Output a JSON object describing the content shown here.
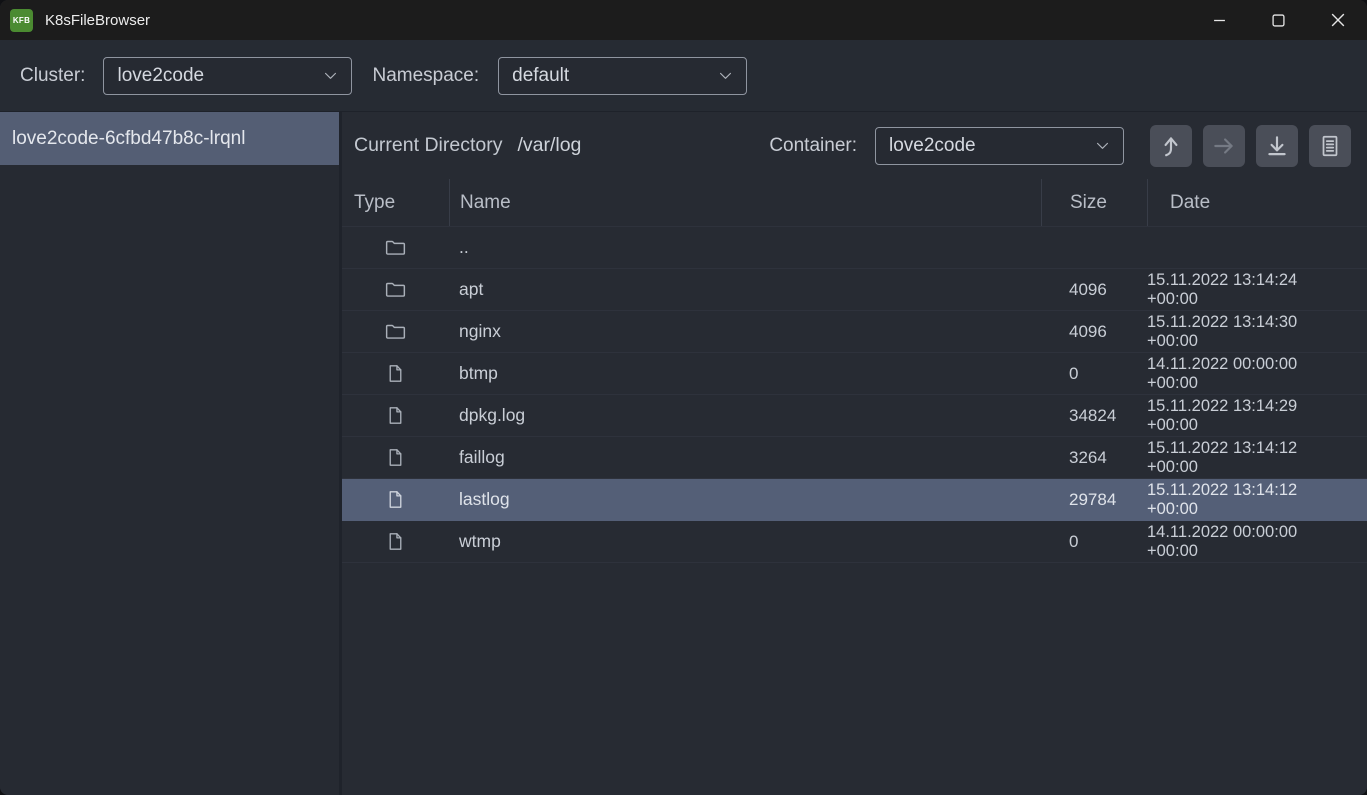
{
  "window": {
    "title": "K8sFileBrowser",
    "icon_text": "KFB",
    "controls": [
      {
        "name": "minimize",
        "icon": "minimize-icon"
      },
      {
        "name": "maximize",
        "icon": "maximize-icon"
      },
      {
        "name": "close",
        "icon": "close-icon"
      }
    ]
  },
  "toolbar": {
    "cluster_label": "Cluster:",
    "cluster_value": "love2code",
    "namespace_label": "Namespace:",
    "namespace_value": "default"
  },
  "sidebar": {
    "pods": [
      {
        "name": "love2code-6cfbd47b8c-lrqnl",
        "selected": true
      }
    ]
  },
  "main": {
    "current_directory_label": "Current Directory",
    "current_directory_path": "/var/log",
    "container_label": "Container:",
    "container_value": "love2code",
    "actions": [
      {
        "name": "navigate-up",
        "icon": "arrow-up-curved-icon",
        "enabled": true
      },
      {
        "name": "navigate-forward",
        "icon": "arrow-right-icon",
        "enabled": false
      },
      {
        "name": "download-file",
        "icon": "download-icon",
        "enabled": true
      },
      {
        "name": "view-logs",
        "icon": "log-document-icon",
        "enabled": true
      }
    ]
  },
  "file_table": {
    "columns": [
      "Type",
      "Name",
      "Size",
      "Date"
    ],
    "rows": [
      {
        "type": "folder",
        "name": "..",
        "size": "",
        "date": "",
        "selected": false
      },
      {
        "type": "folder",
        "name": "apt",
        "size": "4096",
        "date": "15.11.2022 13:14:24 +00:00",
        "selected": false
      },
      {
        "type": "folder",
        "name": "nginx",
        "size": "4096",
        "date": "15.11.2022 13:14:30 +00:00",
        "selected": false
      },
      {
        "type": "file",
        "name": "btmp",
        "size": "0",
        "date": "14.11.2022 00:00:00 +00:00",
        "selected": false
      },
      {
        "type": "file",
        "name": "dpkg.log",
        "size": "34824",
        "date": "15.11.2022 13:14:29 +00:00",
        "selected": false
      },
      {
        "type": "file",
        "name": "faillog",
        "size": "3264",
        "date": "15.11.2022 13:14:12 +00:00",
        "selected": false
      },
      {
        "type": "file",
        "name": "lastlog",
        "size": "29784",
        "date": "15.11.2022 13:14:12 +00:00",
        "selected": true
      },
      {
        "type": "file",
        "name": "wtmp",
        "size": "0",
        "date": "14.11.2022 00:00:00 +00:00",
        "selected": false
      }
    ]
  },
  "colors": {
    "titlebar_bg": "#1c1c1c",
    "window_bg": "#272b33",
    "selection": "#545f77",
    "sidebar_selection": "#545e74",
    "app_icon_green": "#4b8b31",
    "action_button_bg": "#4a4e58",
    "dropdown_border": "#8f95a0"
  }
}
